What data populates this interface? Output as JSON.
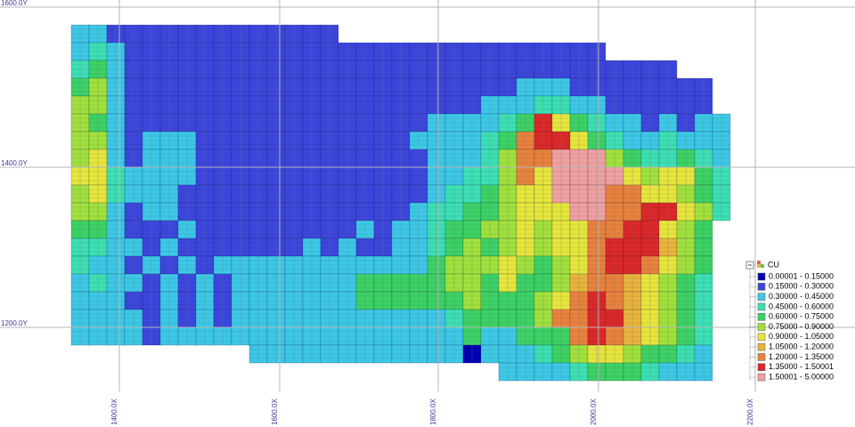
{
  "axes": {
    "y_labels": [
      "1600.0Y",
      "1400.0Y",
      "1200.0Y"
    ],
    "x_labels": [
      "1400.0X",
      "1600.0X",
      "1800.0X",
      "2000.0X",
      "2200.0X"
    ]
  },
  "legend": {
    "title": "CU",
    "items": [
      {
        "label": "0.00001 - 0.15000",
        "color": "#0000b4"
      },
      {
        "label": "0.15000 - 0.30000",
        "color": "#3c46dc"
      },
      {
        "label": "0.30000 - 0.45000",
        "color": "#3cc8e6"
      },
      {
        "label": "0.45000 - 0.60000",
        "color": "#3ce0b4"
      },
      {
        "label": "0.60000 - 0.75000",
        "color": "#3cd264"
      },
      {
        "label": "0.75000 - 0.90000",
        "color": "#a0e13c"
      },
      {
        "label": "0.90000 - 1.05000",
        "color": "#e6e63c"
      },
      {
        "label": "1.05000 - 1.20000",
        "color": "#e8b43c"
      },
      {
        "label": "1.20000 - 1.35000",
        "color": "#e8823c"
      },
      {
        "label": "1.35000 - 1.50001",
        "color": "#dc2828"
      },
      {
        "label": "1.50001 - 5.00000",
        "color": "#f0a0a0"
      }
    ]
  },
  "blocks": {
    "rows": [
      [
        2,
        2,
        1,
        1,
        1,
        1,
        1,
        1,
        1,
        1,
        1,
        1,
        1,
        1,
        1,
        null,
        null,
        null,
        null,
        null,
        null,
        null,
        null,
        null,
        null,
        null,
        null,
        null,
        null,
        null,
        null,
        null,
        null,
        null,
        null,
        null,
        null
      ],
      [
        2,
        3,
        2,
        1,
        1,
        1,
        1,
        1,
        1,
        1,
        1,
        1,
        1,
        1,
        1,
        1,
        1,
        1,
        1,
        1,
        1,
        1,
        1,
        1,
        1,
        1,
        1,
        1,
        1,
        1,
        null,
        null,
        null,
        null,
        null,
        null,
        null
      ],
      [
        3,
        4,
        2,
        1,
        1,
        1,
        1,
        1,
        1,
        1,
        1,
        1,
        1,
        1,
        1,
        1,
        1,
        1,
        1,
        1,
        1,
        1,
        1,
        1,
        1,
        1,
        1,
        1,
        1,
        1,
        1,
        1,
        1,
        1,
        null,
        null,
        null
      ],
      [
        4,
        5,
        2,
        1,
        1,
        1,
        1,
        1,
        1,
        1,
        1,
        1,
        1,
        1,
        1,
        1,
        1,
        1,
        1,
        1,
        1,
        1,
        1,
        1,
        1,
        2,
        2,
        2,
        1,
        1,
        1,
        1,
        1,
        1,
        1,
        1,
        null
      ],
      [
        5,
        5,
        2,
        1,
        1,
        1,
        1,
        1,
        1,
        1,
        1,
        1,
        1,
        1,
        1,
        1,
        1,
        1,
        1,
        1,
        1,
        1,
        1,
        2,
        2,
        2,
        3,
        3,
        2,
        2,
        1,
        1,
        1,
        1,
        1,
        1,
        null
      ],
      [
        5,
        4,
        2,
        1,
        1,
        1,
        1,
        1,
        1,
        1,
        1,
        1,
        1,
        1,
        1,
        1,
        1,
        1,
        1,
        1,
        2,
        2,
        2,
        2,
        3,
        4,
        9,
        6,
        4,
        3,
        2,
        2,
        1,
        2,
        1,
        2,
        2
      ],
      [
        5,
        5,
        2,
        1,
        2,
        2,
        2,
        1,
        1,
        1,
        1,
        1,
        1,
        1,
        1,
        1,
        1,
        1,
        1,
        2,
        2,
        2,
        2,
        3,
        4,
        8,
        9,
        9,
        6,
        4,
        3,
        2,
        2,
        3,
        2,
        2,
        2
      ],
      [
        5,
        6,
        2,
        1,
        2,
        2,
        2,
        1,
        1,
        1,
        1,
        1,
        1,
        1,
        1,
        1,
        1,
        1,
        1,
        1,
        2,
        2,
        2,
        3,
        5,
        8,
        8,
        10,
        10,
        10,
        5,
        4,
        3,
        3,
        4,
        3,
        2
      ],
      [
        6,
        6,
        3,
        2,
        2,
        2,
        2,
        1,
        1,
        1,
        1,
        1,
        1,
        1,
        1,
        1,
        1,
        1,
        1,
        1,
        2,
        2,
        3,
        3,
        5,
        8,
        6,
        10,
        10,
        10,
        10,
        6,
        5,
        6,
        6,
        4,
        3
      ],
      [
        5,
        6,
        3,
        2,
        2,
        2,
        1,
        1,
        1,
        1,
        1,
        1,
        1,
        1,
        1,
        1,
        1,
        1,
        1,
        1,
        2,
        3,
        3,
        4,
        5,
        6,
        6,
        10,
        10,
        10,
        8,
        8,
        6,
        6,
        5,
        4,
        3
      ],
      [
        5,
        5,
        2,
        1,
        2,
        2,
        1,
        1,
        1,
        1,
        1,
        1,
        1,
        1,
        1,
        1,
        1,
        1,
        1,
        2,
        3,
        3,
        4,
        4,
        5,
        6,
        6,
        6,
        10,
        10,
        8,
        8,
        9,
        9,
        6,
        5,
        3
      ],
      [
        4,
        4,
        2,
        1,
        1,
        1,
        2,
        1,
        1,
        1,
        1,
        1,
        1,
        1,
        1,
        1,
        2,
        1,
        2,
        2,
        3,
        4,
        4,
        5,
        5,
        6,
        5,
        6,
        6,
        8,
        8,
        9,
        9,
        6,
        5,
        4,
        null
      ],
      [
        3,
        3,
        2,
        2,
        1,
        2,
        1,
        1,
        1,
        1,
        1,
        1,
        1,
        2,
        1,
        2,
        1,
        1,
        2,
        2,
        3,
        4,
        5,
        4,
        5,
        6,
        5,
        6,
        6,
        8,
        9,
        9,
        9,
        7,
        5,
        4,
        null
      ],
      [
        3,
        2,
        2,
        1,
        2,
        1,
        2,
        1,
        2,
        2,
        2,
        2,
        2,
        2,
        2,
        2,
        2,
        2,
        2,
        2,
        4,
        5,
        5,
        5,
        6,
        5,
        4,
        5,
        6,
        8,
        9,
        9,
        8,
        6,
        5,
        4,
        null
      ],
      [
        2,
        3,
        2,
        2,
        1,
        2,
        1,
        2,
        1,
        2,
        2,
        2,
        2,
        2,
        2,
        2,
        4,
        4,
        4,
        4,
        4,
        5,
        5,
        4,
        6,
        4,
        4,
        5,
        7,
        8,
        8,
        7,
        6,
        5,
        4,
        3,
        null
      ],
      [
        2,
        2,
        2,
        1,
        1,
        2,
        1,
        2,
        1,
        2,
        2,
        2,
        2,
        2,
        2,
        2,
        4,
        4,
        4,
        4,
        4,
        4,
        5,
        4,
        4,
        4,
        5,
        6,
        8,
        9,
        8,
        7,
        6,
        5,
        4,
        3,
        null
      ],
      [
        2,
        2,
        2,
        2,
        1,
        2,
        1,
        2,
        1,
        2,
        2,
        2,
        2,
        2,
        2,
        2,
        2,
        2,
        2,
        2,
        2,
        3,
        4,
        4,
        4,
        4,
        5,
        8,
        8,
        9,
        9,
        7,
        6,
        5,
        4,
        3,
        null
      ],
      [
        2,
        2,
        2,
        2,
        1,
        2,
        2,
        2,
        2,
        2,
        2,
        2,
        2,
        2,
        2,
        2,
        2,
        2,
        2,
        2,
        2,
        2,
        4,
        2,
        2,
        4,
        4,
        4,
        8,
        9,
        8,
        7,
        6,
        5,
        4,
        3,
        null
      ],
      [
        null,
        null,
        null,
        null,
        null,
        null,
        null,
        null,
        null,
        null,
        2,
        2,
        2,
        2,
        2,
        2,
        2,
        2,
        2,
        2,
        2,
        2,
        0,
        2,
        2,
        2,
        3,
        4,
        5,
        6,
        6,
        5,
        4,
        4,
        3,
        2,
        null
      ],
      [
        null,
        null,
        null,
        null,
        null,
        null,
        null,
        null,
        null,
        null,
        null,
        null,
        null,
        null,
        null,
        null,
        null,
        null,
        null,
        null,
        null,
        null,
        null,
        null,
        2,
        2,
        2,
        2,
        3,
        4,
        4,
        4,
        3,
        2,
        2,
        2,
        null
      ]
    ]
  }
}
